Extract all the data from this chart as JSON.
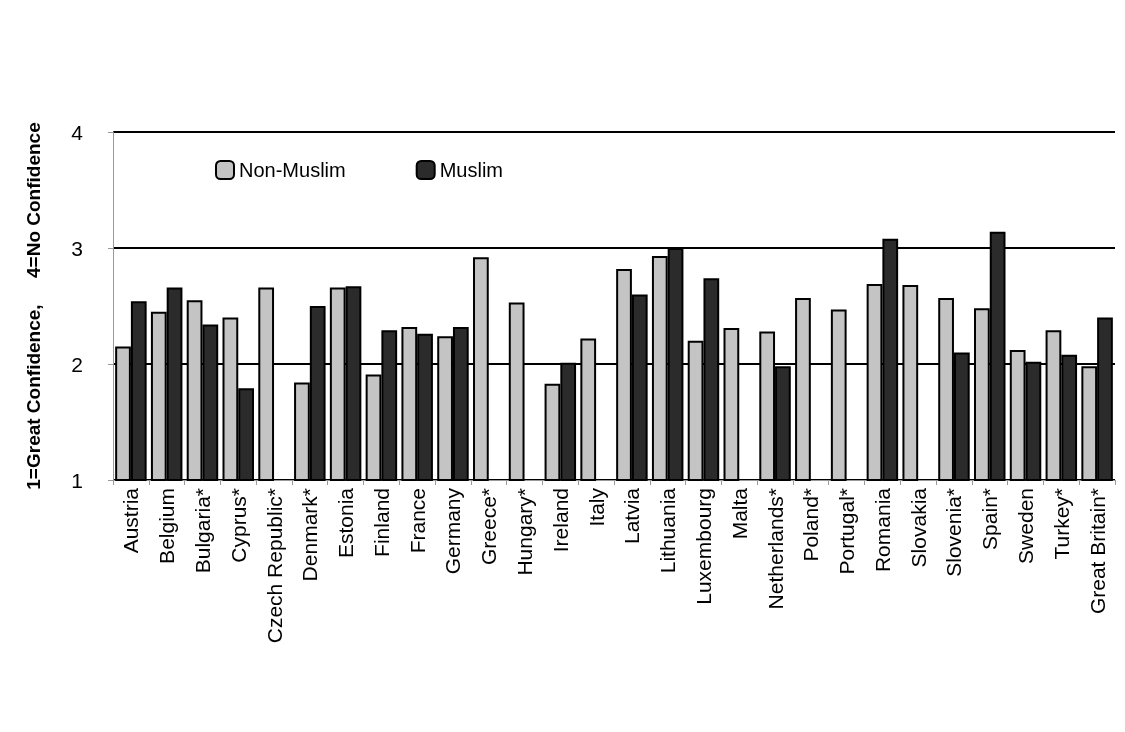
{
  "chart_data": {
    "type": "bar",
    "ylabel": "1=Great Confidence,     4=No Confidence",
    "categories": [
      "Austria",
      "Belgium",
      "Bulgaria*",
      "Cyprus*",
      "Czech Republic*",
      "Denmark*",
      "Estonia",
      "Finland",
      "France",
      "Germany",
      "Greece*",
      "Hungary*",
      "Ireland",
      "Italy",
      "Latvia",
      "Lithuania",
      "Luxembourg",
      "Malta",
      "Netherlands*",
      "Poland*",
      "Portugal*",
      "Romania",
      "Slovakia",
      "Slovenia*",
      "Spain*",
      "Sweden",
      "Turkey*",
      "Great Britain*"
    ],
    "series": [
      {
        "name": "Non-Muslim",
        "color": "#c4c4c4",
        "values": [
          2.15,
          2.45,
          2.55,
          2.4,
          2.66,
          1.84,
          2.66,
          1.91,
          2.32,
          2.24,
          2.92,
          2.53,
          1.83,
          2.22,
          2.82,
          2.93,
          2.2,
          2.31,
          2.28,
          2.57,
          2.47,
          2.69,
          2.68,
          2.57,
          2.48,
          2.12,
          2.29,
          1.98
        ]
      },
      {
        "name": "Muslim",
        "color": "#2b2b2b",
        "values": [
          2.54,
          2.66,
          2.34,
          1.79,
          null,
          2.5,
          2.67,
          2.29,
          2.26,
          2.32,
          null,
          null,
          2.01,
          null,
          2.6,
          3.0,
          2.74,
          null,
          1.98,
          null,
          null,
          3.08,
          null,
          2.1,
          3.14,
          2.02,
          2.08,
          2.4
        ]
      }
    ],
    "ylim": [
      1,
      4
    ],
    "yticks": [
      1,
      2,
      3,
      4
    ],
    "grid": "y",
    "legend": "top left"
  }
}
